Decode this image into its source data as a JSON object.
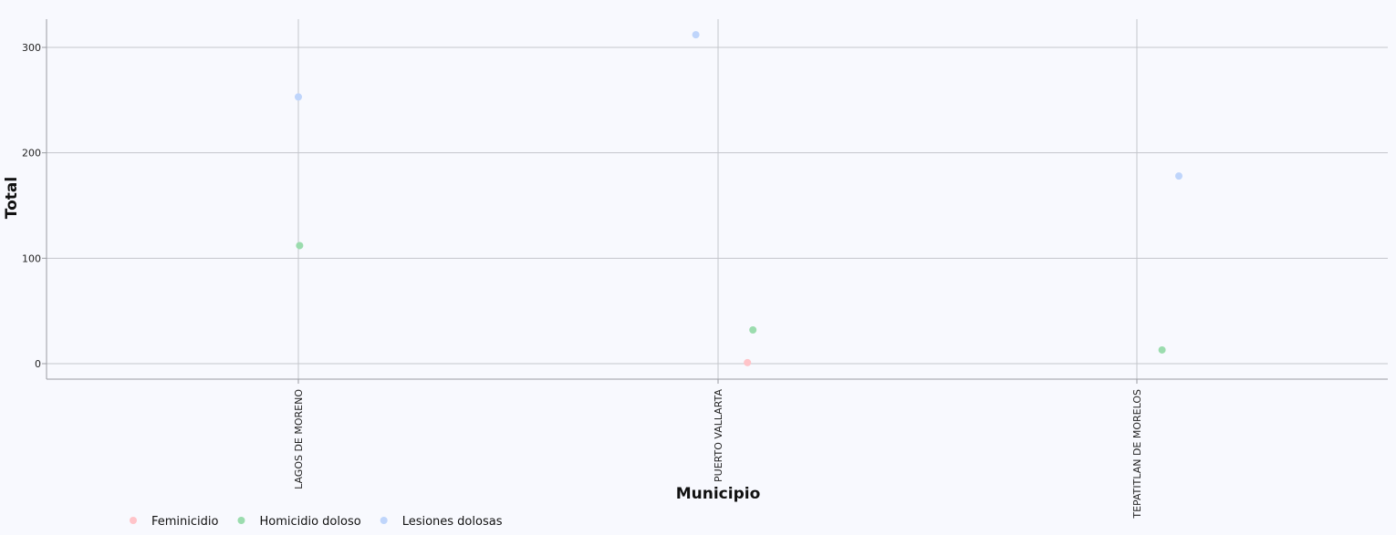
{
  "chart_data": {
    "type": "scatter",
    "categories": [
      "LAGOS DE MORENO",
      "PUERTO VALLARTA",
      "TEPATITLAN DE MORELOS"
    ],
    "xlabel": "Municipio",
    "ylabel": "Total",
    "ylim": [
      -15,
      328
    ],
    "yticks": [
      0,
      100,
      200,
      300
    ],
    "grid": true,
    "legend_position": "bottom-left",
    "series": [
      {
        "name": "Feminicidio",
        "color": "#ffc4c9",
        "points": [
          {
            "category": "PUERTO VALLARTA",
            "jitter": 0.07,
            "y": 1
          }
        ]
      },
      {
        "name": "Homicidio doloso",
        "color": "#9bdcae",
        "points": [
          {
            "category": "LAGOS DE MORENO",
            "jitter": 0.003,
            "y": 112
          },
          {
            "category": "PUERTO VALLARTA",
            "jitter": 0.083,
            "y": 32
          },
          {
            "category": "TEPATITLAN DE MORELOS",
            "jitter": 0.06,
            "y": 13
          }
        ]
      },
      {
        "name": "Lesiones dolosas",
        "color": "#bfd5fb",
        "points": [
          {
            "category": "LAGOS DE MORENO",
            "jitter": 0.0,
            "y": 253
          },
          {
            "category": "PUERTO VALLARTA",
            "jitter": -0.053,
            "y": 312
          },
          {
            "category": "TEPATITLAN DE MORELOS",
            "jitter": 0.1,
            "y": 178
          }
        ]
      }
    ]
  }
}
